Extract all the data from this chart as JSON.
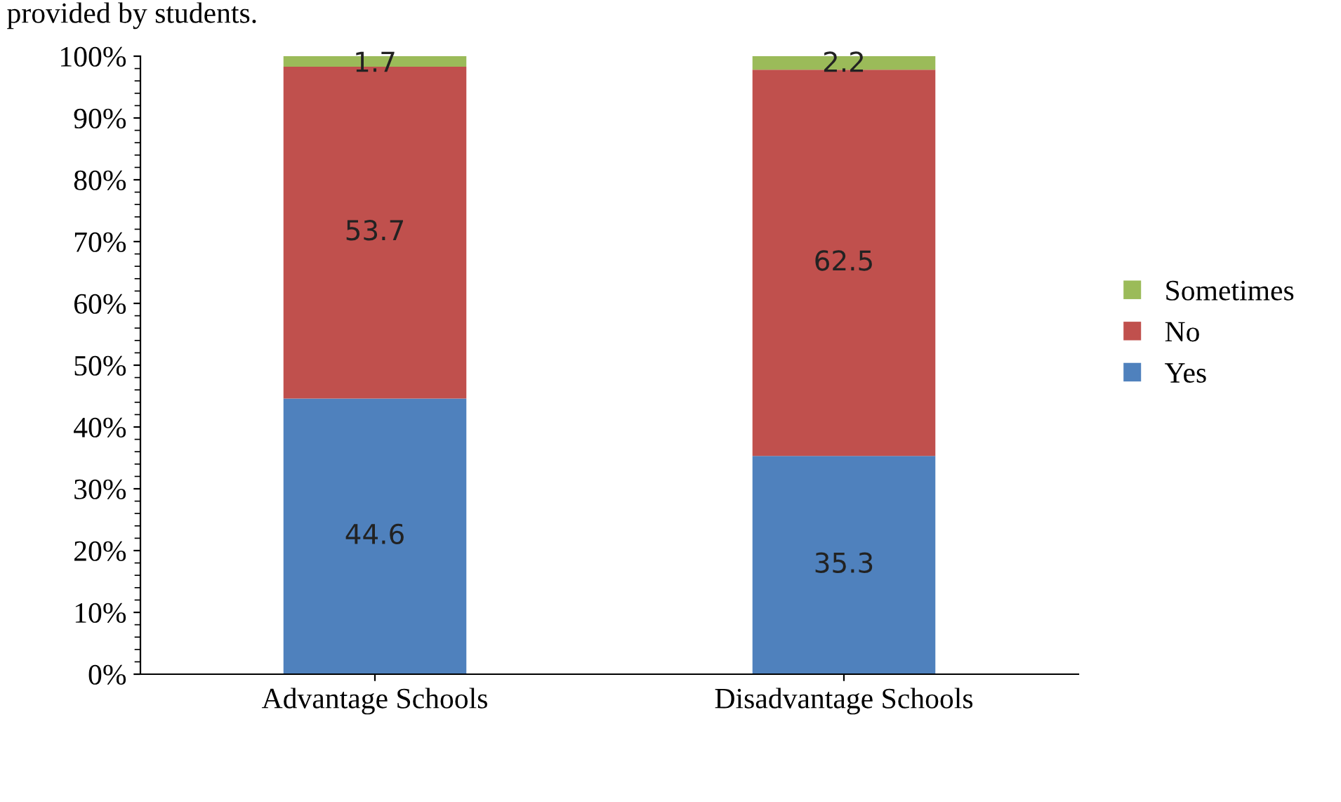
{
  "chart_data": {
    "type": "bar",
    "stacked": true,
    "categories": [
      "Advantage Schools",
      "Disadvantage Schools"
    ],
    "series": [
      {
        "name": "Yes",
        "color": "#4f81bd",
        "values": [
          44.6,
          35.3
        ]
      },
      {
        "name": "No",
        "color": "#c0504d",
        "values": [
          53.7,
          62.5
        ]
      },
      {
        "name": "Sometimes",
        "color": "#9bbb59",
        "values": [
          1.7,
          2.2
        ]
      }
    ],
    "ylim": [
      0,
      100
    ],
    "yticks": [
      {
        "value": 0,
        "label": "0%"
      },
      {
        "value": 10,
        "label": "10%"
      },
      {
        "value": 20,
        "label": "20%"
      },
      {
        "value": 30,
        "label": "30%"
      },
      {
        "value": 40,
        "label": "40%"
      },
      {
        "value": 50,
        "label": "50%"
      },
      {
        "value": 60,
        "label": "60%"
      },
      {
        "value": 70,
        "label": "70%"
      },
      {
        "value": 80,
        "label": "80%"
      },
      {
        "value": 90,
        "label": "90%"
      },
      {
        "value": 100,
        "label": "100%"
      }
    ],
    "data_labels": true,
    "legend": "right",
    "grid": false,
    "annotations": [
      "provided by students."
    ]
  }
}
